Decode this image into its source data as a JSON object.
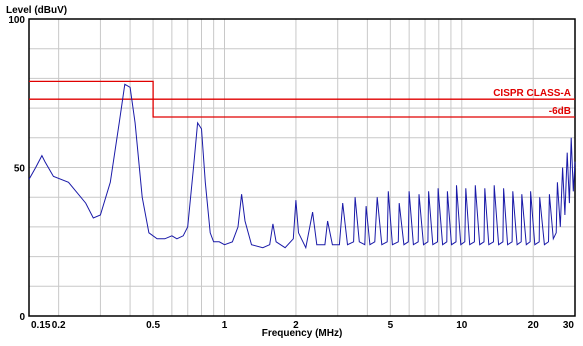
{
  "chart_data": {
    "type": "line",
    "xscale": "log",
    "xlim": [
      0.15,
      30
    ],
    "ylim": [
      0,
      100
    ],
    "ylabel": "Level (dBuV)",
    "xlabel": "Frequency (MHz)",
    "x_ticks": [
      {
        "value": 0.15,
        "label": "0.15"
      },
      {
        "value": 0.2,
        "label": "0.2"
      },
      {
        "value": 0.5,
        "label": "0.5"
      },
      {
        "value": 1,
        "label": "1"
      },
      {
        "value": 2,
        "label": "2"
      },
      {
        "value": 5,
        "label": "5"
      },
      {
        "value": 10,
        "label": "10"
      },
      {
        "value": 20,
        "label": "20"
      },
      {
        "value": 30,
        "label": "30"
      }
    ],
    "y_ticks": [
      {
        "value": 0,
        "label": "0"
      },
      {
        "value": 50,
        "label": "50"
      },
      {
        "value": 100,
        "label": "100"
      }
    ],
    "grid": true,
    "limits": [
      {
        "name": "CISPR CLASS-A",
        "color": "#e00000",
        "points": [
          [
            0.15,
            79
          ],
          [
            0.5,
            79
          ],
          [
            0.5,
            73
          ],
          [
            30,
            73
          ]
        ]
      },
      {
        "name": "-6dB",
        "color": "#e00000",
        "points": [
          [
            0.15,
            73
          ],
          [
            0.5,
            73
          ],
          [
            0.5,
            67
          ],
          [
            30,
            67
          ]
        ]
      }
    ],
    "series": [
      {
        "color": "#1a1aa8",
        "points": [
          [
            0.15,
            46
          ],
          [
            0.16,
            50
          ],
          [
            0.17,
            54
          ],
          [
            0.175,
            52
          ],
          [
            0.19,
            47
          ],
          [
            0.22,
            45
          ],
          [
            0.26,
            38
          ],
          [
            0.28,
            33
          ],
          [
            0.3,
            34
          ],
          [
            0.33,
            45
          ],
          [
            0.36,
            65
          ],
          [
            0.38,
            78
          ],
          [
            0.4,
            77
          ],
          [
            0.42,
            65
          ],
          [
            0.45,
            40
          ],
          [
            0.48,
            28
          ],
          [
            0.52,
            26
          ],
          [
            0.56,
            26
          ],
          [
            0.6,
            27
          ],
          [
            0.63,
            26
          ],
          [
            0.67,
            27
          ],
          [
            0.7,
            30
          ],
          [
            0.74,
            50
          ],
          [
            0.77,
            65
          ],
          [
            0.8,
            63
          ],
          [
            0.83,
            45
          ],
          [
            0.87,
            28
          ],
          [
            0.9,
            25
          ],
          [
            0.95,
            25
          ],
          [
            1.0,
            24
          ],
          [
            1.08,
            25
          ],
          [
            1.14,
            30
          ],
          [
            1.18,
            41
          ],
          [
            1.22,
            32
          ],
          [
            1.3,
            24
          ],
          [
            1.45,
            23
          ],
          [
            1.55,
            24
          ],
          [
            1.6,
            31
          ],
          [
            1.65,
            25
          ],
          [
            1.8,
            23
          ],
          [
            1.95,
            26
          ],
          [
            2.0,
            39
          ],
          [
            2.05,
            28
          ],
          [
            2.2,
            23
          ],
          [
            2.35,
            35
          ],
          [
            2.45,
            24
          ],
          [
            2.65,
            24
          ],
          [
            2.72,
            32
          ],
          [
            2.85,
            24
          ],
          [
            3.05,
            24
          ],
          [
            3.15,
            38
          ],
          [
            3.3,
            24
          ],
          [
            3.5,
            25
          ],
          [
            3.55,
            40
          ],
          [
            3.7,
            25
          ],
          [
            3.9,
            24
          ],
          [
            3.95,
            37
          ],
          [
            4.1,
            24
          ],
          [
            4.3,
            25
          ],
          [
            4.4,
            40
          ],
          [
            4.6,
            24
          ],
          [
            4.85,
            25
          ],
          [
            4.9,
            42
          ],
          [
            5.1,
            24
          ],
          [
            5.4,
            25
          ],
          [
            5.45,
            38
          ],
          [
            5.7,
            24
          ],
          [
            5.95,
            25
          ],
          [
            6.0,
            42
          ],
          [
            6.25,
            24
          ],
          [
            6.55,
            25
          ],
          [
            6.6,
            41
          ],
          [
            6.9,
            24
          ],
          [
            7.2,
            25
          ],
          [
            7.25,
            42
          ],
          [
            7.55,
            24
          ],
          [
            7.9,
            25
          ],
          [
            7.95,
            43
          ],
          [
            8.3,
            24
          ],
          [
            8.65,
            25
          ],
          [
            8.7,
            42
          ],
          [
            9.05,
            24
          ],
          [
            9.45,
            25
          ],
          [
            9.5,
            44
          ],
          [
            9.9,
            24
          ],
          [
            10.3,
            25
          ],
          [
            10.4,
            43
          ],
          [
            10.8,
            24
          ],
          [
            11.3,
            25
          ],
          [
            11.4,
            44
          ],
          [
            11.9,
            24
          ],
          [
            12.4,
            25
          ],
          [
            12.5,
            43
          ],
          [
            13.0,
            24
          ],
          [
            13.6,
            25
          ],
          [
            13.7,
            44
          ],
          [
            14.3,
            24
          ],
          [
            14.9,
            25
          ],
          [
            15.0,
            43
          ],
          [
            15.6,
            24
          ],
          [
            16.3,
            25
          ],
          [
            16.4,
            42
          ],
          [
            17.1,
            24
          ],
          [
            17.8,
            25
          ],
          [
            17.9,
            41
          ],
          [
            18.7,
            24
          ],
          [
            19.4,
            25
          ],
          [
            19.5,
            42
          ],
          [
            20.3,
            24
          ],
          [
            21.2,
            25
          ],
          [
            21.3,
            40
          ],
          [
            22.3,
            24
          ],
          [
            23.2,
            25
          ],
          [
            23.4,
            41
          ],
          [
            24.3,
            26
          ],
          [
            25.0,
            28
          ],
          [
            25.3,
            45
          ],
          [
            26.0,
            30
          ],
          [
            26.6,
            50
          ],
          [
            27.2,
            34
          ],
          [
            27.8,
            55
          ],
          [
            28.4,
            38
          ],
          [
            28.9,
            60
          ],
          [
            29.5,
            42
          ],
          [
            30.0,
            52
          ]
        ]
      }
    ]
  }
}
